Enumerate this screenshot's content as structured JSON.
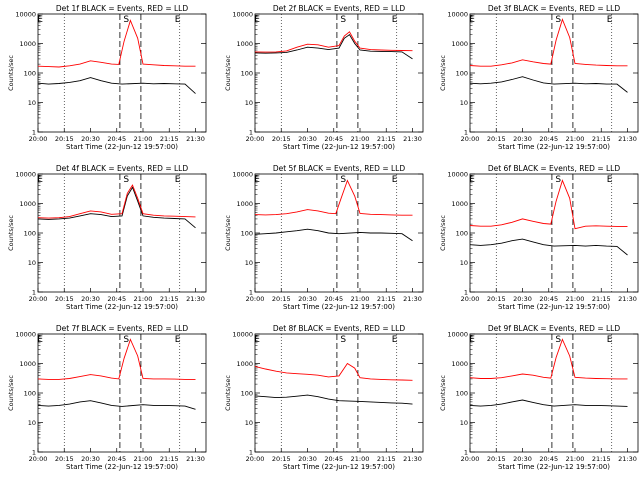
{
  "chart_data": [
    {
      "type": "line",
      "title": "Det 1f BLACK = Events, RED = LLD",
      "xlabel": "Start Time (22-Jun-12 19:57:00)",
      "ylabel": "Counts/sec",
      "yscale": "log",
      "ylim": [
        1,
        10000
      ],
      "yticks": [
        {
          "v": 1,
          "l": "1"
        },
        {
          "v": 10,
          "l": "10"
        },
        {
          "v": 100,
          "l": "100"
        },
        {
          "v": 1000,
          "l": "1000"
        },
        {
          "v": 10000,
          "l": "10000"
        }
      ],
      "xticks": [
        "20:00",
        "20:15",
        "20:30",
        "20:45",
        "21:00",
        "21:15",
        "21:30"
      ],
      "markers": [
        "E",
        "S",
        "E"
      ],
      "series": [
        {
          "color": "#000000",
          "x": [
            20.0,
            20.1,
            20.2,
            20.3,
            20.4,
            20.5,
            20.6,
            20.7,
            20.8,
            21.0,
            21.1,
            21.2,
            21.3,
            21.4,
            21.5
          ],
          "y": [
            45,
            42,
            44,
            48,
            55,
            70,
            55,
            45,
            42,
            45,
            43,
            44,
            43,
            42,
            20
          ]
        },
        {
          "color": "#ff0000",
          "x": [
            20.0,
            20.1,
            20.2,
            20.3,
            20.4,
            20.5,
            20.6,
            20.7,
            20.77,
            20.82,
            20.88,
            20.95,
            21.0,
            21.1,
            21.2,
            21.3,
            21.4,
            21.5
          ],
          "y": [
            170,
            165,
            160,
            175,
            200,
            260,
            230,
            200,
            195,
            1200,
            6000,
            1500,
            200,
            190,
            180,
            175,
            170,
            170
          ]
        }
      ]
    },
    {
      "type": "line",
      "title": "Det 2f BLACK = Events, RED = LLD",
      "xlabel": "Start Time (22-Jun-12 19:57:00)",
      "ylabel": "Counts/sec",
      "yscale": "log",
      "ylim": [
        1,
        10000
      ],
      "yticks": [
        {
          "v": 1,
          "l": "1"
        },
        {
          "v": 10,
          "l": "10"
        },
        {
          "v": 100,
          "l": "100"
        },
        {
          "v": 1000,
          "l": "1000"
        },
        {
          "v": 10000,
          "l": "10000"
        }
      ],
      "xticks": [
        "20:00",
        "20:15",
        "20:30",
        "20:45",
        "21:00",
        "21:15",
        "21:30"
      ],
      "markers": [
        "E",
        "S",
        "E"
      ],
      "series": [
        {
          "color": "#000000",
          "x": [
            20.0,
            20.1,
            20.2,
            20.3,
            20.4,
            20.5,
            20.6,
            20.7,
            20.8,
            20.85,
            20.9,
            20.95,
            21.0,
            21.1,
            21.2,
            21.3,
            21.4,
            21.5
          ],
          "y": [
            480,
            470,
            480,
            500,
            600,
            750,
            700,
            620,
            700,
            1500,
            2000,
            1000,
            600,
            550,
            540,
            530,
            520,
            300
          ]
        },
        {
          "color": "#ff0000",
          "x": [
            20.0,
            20.1,
            20.2,
            20.3,
            20.4,
            20.5,
            20.6,
            20.7,
            20.8,
            20.85,
            20.9,
            20.95,
            21.0,
            21.1,
            21.2,
            21.3,
            21.4,
            21.5
          ],
          "y": [
            520,
            510,
            520,
            560,
            750,
            950,
            900,
            750,
            850,
            1800,
            2500,
            1200,
            700,
            620,
            600,
            590,
            580,
            570
          ]
        }
      ]
    },
    {
      "type": "line",
      "title": "Det 3f BLACK = Events, RED = LLD",
      "xlabel": "Start Time (22-Jun-12 19:57:00)",
      "ylabel": "Counts/sec",
      "yscale": "log",
      "ylim": [
        1,
        10000
      ],
      "yticks": [
        {
          "v": 1,
          "l": "1"
        },
        {
          "v": 10,
          "l": "10"
        },
        {
          "v": 100,
          "l": "100"
        },
        {
          "v": 1000,
          "l": "1000"
        },
        {
          "v": 10000,
          "l": "10000"
        }
      ],
      "xticks": [
        "20:00",
        "20:15",
        "20:30",
        "20:45",
        "21:00",
        "21:15",
        "21:30"
      ],
      "markers": [
        "E",
        "S",
        "E"
      ],
      "series": [
        {
          "color": "#000000",
          "x": [
            20.0,
            20.1,
            20.2,
            20.3,
            20.4,
            20.5,
            20.6,
            20.7,
            20.8,
            21.0,
            21.1,
            21.2,
            21.3,
            21.4,
            21.5
          ],
          "y": [
            45,
            43,
            45,
            50,
            60,
            75,
            58,
            46,
            42,
            45,
            43,
            44,
            42,
            42,
            22
          ]
        },
        {
          "color": "#ff0000",
          "x": [
            20.0,
            20.1,
            20.2,
            20.3,
            20.4,
            20.5,
            20.6,
            20.7,
            20.77,
            20.82,
            20.88,
            20.95,
            21.0,
            21.1,
            21.2,
            21.3,
            21.4,
            21.5
          ],
          "y": [
            180,
            170,
            170,
            190,
            220,
            280,
            240,
            210,
            200,
            1300,
            6500,
            1600,
            210,
            195,
            185,
            180,
            175,
            175
          ]
        }
      ]
    },
    {
      "type": "line",
      "title": "Det 4f BLACK = Events, RED = LLD",
      "xlabel": "Start Time (22-Jun-12 19:57:00)",
      "ylabel": "Counts/sec",
      "yscale": "log",
      "ylim": [
        1,
        10000
      ],
      "yticks": [
        {
          "v": 1,
          "l": "1"
        },
        {
          "v": 10,
          "l": "10"
        },
        {
          "v": 100,
          "l": "100"
        },
        {
          "v": 1000,
          "l": "1000"
        },
        {
          "v": 10000,
          "l": "10000"
        }
      ],
      "xticks": [
        "20:00",
        "20:15",
        "20:30",
        "20:45",
        "21:00",
        "21:15",
        "21:30"
      ],
      "markers": [
        "E",
        "S",
        "E"
      ],
      "series": [
        {
          "color": "#000000",
          "x": [
            20.0,
            20.1,
            20.2,
            20.3,
            20.4,
            20.5,
            20.6,
            20.7,
            20.8,
            20.85,
            20.9,
            20.95,
            21.0,
            21.1,
            21.2,
            21.3,
            21.4,
            21.5
          ],
          "y": [
            300,
            290,
            300,
            320,
            380,
            450,
            420,
            360,
            380,
            1800,
            3500,
            1200,
            380,
            340,
            320,
            310,
            300,
            150
          ]
        },
        {
          "color": "#ff0000",
          "x": [
            20.0,
            20.1,
            20.2,
            20.3,
            20.4,
            20.5,
            20.6,
            20.7,
            20.8,
            20.85,
            20.9,
            20.95,
            21.0,
            21.1,
            21.2,
            21.3,
            21.4,
            21.5
          ],
          "y": [
            330,
            320,
            330,
            360,
            450,
            560,
            520,
            430,
            450,
            2200,
            4200,
            1500,
            450,
            400,
            380,
            370,
            360,
            350
          ]
        }
      ]
    },
    {
      "type": "line",
      "title": "Det 5f BLACK = Events, RED = LLD",
      "xlabel": "Start Time (22-Jun-12 19:57:00)",
      "ylabel": "Counts/sec",
      "yscale": "log",
      "ylim": [
        1,
        10000
      ],
      "yticks": [
        {
          "v": 1,
          "l": "1"
        },
        {
          "v": 10,
          "l": "10"
        },
        {
          "v": 100,
          "l": "100"
        },
        {
          "v": 1000,
          "l": "1000"
        },
        {
          "v": 10000,
          "l": "10000"
        }
      ],
      "xticks": [
        "20:00",
        "20:15",
        "20:30",
        "20:45",
        "21:00",
        "21:15",
        "21:30"
      ],
      "markers": [
        "E",
        "S",
        "E"
      ],
      "series": [
        {
          "color": "#000000",
          "x": [
            20.0,
            20.1,
            20.2,
            20.3,
            20.4,
            20.5,
            20.6,
            20.7,
            20.8,
            21.0,
            21.1,
            21.2,
            21.3,
            21.4,
            21.5
          ],
          "y": [
            90,
            95,
            100,
            110,
            120,
            135,
            120,
            100,
            95,
            105,
            100,
            100,
            98,
            95,
            55
          ]
        },
        {
          "color": "#ff0000",
          "x": [
            20.0,
            20.1,
            20.2,
            20.3,
            20.4,
            20.5,
            20.6,
            20.7,
            20.77,
            20.82,
            20.88,
            20.95,
            21.0,
            21.1,
            21.2,
            21.3,
            21.4,
            21.5
          ],
          "y": [
            420,
            410,
            420,
            450,
            520,
            620,
            560,
            470,
            450,
            1500,
            6000,
            1800,
            460,
            430,
            420,
            410,
            400,
            400
          ]
        }
      ]
    },
    {
      "type": "line",
      "title": "Det 6f BLACK = Events, RED = LLD",
      "xlabel": "Start Time (22-Jun-12 19:57:00)",
      "ylabel": "Counts/sec",
      "yscale": "log",
      "ylim": [
        1,
        10000
      ],
      "yticks": [
        {
          "v": 1,
          "l": "1"
        },
        {
          "v": 10,
          "l": "10"
        },
        {
          "v": 100,
          "l": "100"
        },
        {
          "v": 1000,
          "l": "1000"
        },
        {
          "v": 10000,
          "l": "10000"
        }
      ],
      "xticks": [
        "20:00",
        "20:15",
        "20:30",
        "20:45",
        "21:00",
        "21:15",
        "21:30"
      ],
      "markers": [
        "E",
        "S",
        "E"
      ],
      "series": [
        {
          "color": "#000000",
          "x": [
            20.0,
            20.1,
            20.2,
            20.3,
            20.4,
            20.5,
            20.6,
            20.7,
            20.8,
            21.0,
            21.1,
            21.2,
            21.3,
            21.4,
            21.5
          ],
          "y": [
            40,
            38,
            40,
            45,
            55,
            62,
            50,
            40,
            36,
            38,
            36,
            38,
            36,
            35,
            18
          ]
        },
        {
          "color": "#ff0000",
          "x": [
            20.0,
            20.1,
            20.2,
            20.3,
            20.4,
            20.5,
            20.6,
            20.7,
            20.77,
            20.82,
            20.88,
            20.95,
            21.0,
            21.1,
            21.2,
            21.3,
            21.4,
            21.5
          ],
          "y": [
            180,
            170,
            170,
            190,
            230,
            300,
            250,
            210,
            200,
            1200,
            6000,
            1500,
            140,
            170,
            175,
            170,
            168,
            165
          ]
        }
      ]
    },
    {
      "type": "line",
      "title": "Det 7f BLACK = Events, RED = LLD",
      "xlabel": "Start Time (22-Jun-12 19:57:00)",
      "ylabel": "Counts/sec",
      "yscale": "log",
      "ylim": [
        1,
        10000
      ],
      "yticks": [
        {
          "v": 1,
          "l": "1"
        },
        {
          "v": 10,
          "l": "10"
        },
        {
          "v": 100,
          "l": "100"
        },
        {
          "v": 1000,
          "l": "1000"
        },
        {
          "v": 10000,
          "l": "10000"
        }
      ],
      "xticks": [
        "20:00",
        "20:15",
        "20:30",
        "20:45",
        "21:00",
        "21:15",
        "21:30"
      ],
      "markers": [
        "E",
        "S",
        "E"
      ],
      "series": [
        {
          "color": "#000000",
          "x": [
            20.0,
            20.1,
            20.2,
            20.3,
            20.4,
            20.5,
            20.6,
            20.7,
            20.8,
            21.0,
            21.1,
            21.2,
            21.3,
            21.4,
            21.5
          ],
          "y": [
            38,
            36,
            38,
            42,
            50,
            55,
            46,
            38,
            35,
            40,
            38,
            38,
            37,
            36,
            28
          ]
        },
        {
          "color": "#ff0000",
          "x": [
            20.0,
            20.1,
            20.2,
            20.3,
            20.4,
            20.5,
            20.6,
            20.7,
            20.77,
            20.82,
            20.88,
            20.95,
            21.0,
            21.1,
            21.2,
            21.3,
            21.4,
            21.5
          ],
          "y": [
            300,
            290,
            290,
            310,
            360,
            420,
            380,
            320,
            300,
            1500,
            6500,
            1800,
            310,
            300,
            300,
            295,
            290,
            290
          ]
        }
      ]
    },
    {
      "type": "line",
      "title": "Det 8f BLACK = Events, RED = LLD",
      "xlabel": "Start Time (22-Jun-12 19:57:00)",
      "ylabel": "Counts/sec",
      "yscale": "log",
      "ylim": [
        1,
        10000
      ],
      "yticks": [
        {
          "v": 1,
          "l": "1"
        },
        {
          "v": 10,
          "l": "10"
        },
        {
          "v": 100,
          "l": "100"
        },
        {
          "v": 1000,
          "l": "1000"
        },
        {
          "v": 10000,
          "l": "10000"
        }
      ],
      "xticks": [
        "20:00",
        "20:15",
        "20:30",
        "20:45",
        "21:00",
        "21:15",
        "21:30"
      ],
      "markers": [
        "E",
        "S",
        "E"
      ],
      "series": [
        {
          "color": "#000000",
          "x": [
            20.0,
            20.1,
            20.2,
            20.3,
            20.4,
            20.5,
            20.6,
            20.7,
            20.8,
            21.0,
            21.1,
            21.2,
            21.3,
            21.4,
            21.5
          ],
          "y": [
            80,
            75,
            70,
            72,
            78,
            85,
            75,
            62,
            55,
            52,
            50,
            48,
            46,
            45,
            42
          ]
        },
        {
          "color": "#ff0000",
          "x": [
            20.0,
            20.1,
            20.2,
            20.3,
            20.4,
            20.5,
            20.6,
            20.7,
            20.8,
            20.88,
            20.95,
            21.0,
            21.1,
            21.2,
            21.3,
            21.4,
            21.5
          ],
          "y": [
            800,
            650,
            550,
            480,
            450,
            430,
            400,
            350,
            380,
            1000,
            700,
            330,
            300,
            290,
            280,
            275,
            270
          ]
        }
      ]
    },
    {
      "type": "line",
      "title": "Det 9f BLACK = Events, RED = LLD",
      "xlabel": "Start Time (22-Jun-12 19:57:00)",
      "ylabel": "Counts/sec",
      "yscale": "log",
      "ylim": [
        1,
        10000
      ],
      "yticks": [
        {
          "v": 1,
          "l": "1"
        },
        {
          "v": 10,
          "l": "10"
        },
        {
          "v": 100,
          "l": "100"
        },
        {
          "v": 1000,
          "l": "1000"
        },
        {
          "v": 10000,
          "l": "10000"
        }
      ],
      "xticks": [
        "20:00",
        "20:15",
        "20:30",
        "20:45",
        "21:00",
        "21:15",
        "21:30"
      ],
      "markers": [
        "E",
        "S",
        "E"
      ],
      "series": [
        {
          "color": "#000000",
          "x": [
            20.0,
            20.1,
            20.2,
            20.3,
            20.4,
            20.5,
            20.6,
            20.7,
            20.8,
            21.0,
            21.1,
            21.2,
            21.3,
            21.4,
            21.5
          ],
          "y": [
            38,
            36,
            38,
            42,
            50,
            58,
            48,
            40,
            36,
            40,
            38,
            38,
            37,
            36,
            35
          ]
        },
        {
          "color": "#ff0000",
          "x": [
            20.0,
            20.1,
            20.2,
            20.3,
            20.4,
            20.5,
            20.6,
            20.7,
            20.77,
            20.82,
            20.88,
            20.95,
            21.0,
            21.1,
            21.2,
            21.3,
            21.4,
            21.5
          ],
          "y": [
            330,
            310,
            310,
            330,
            380,
            440,
            400,
            340,
            320,
            1600,
            6500,
            1800,
            340,
            320,
            310,
            305,
            300,
            300
          ]
        }
      ]
    }
  ]
}
